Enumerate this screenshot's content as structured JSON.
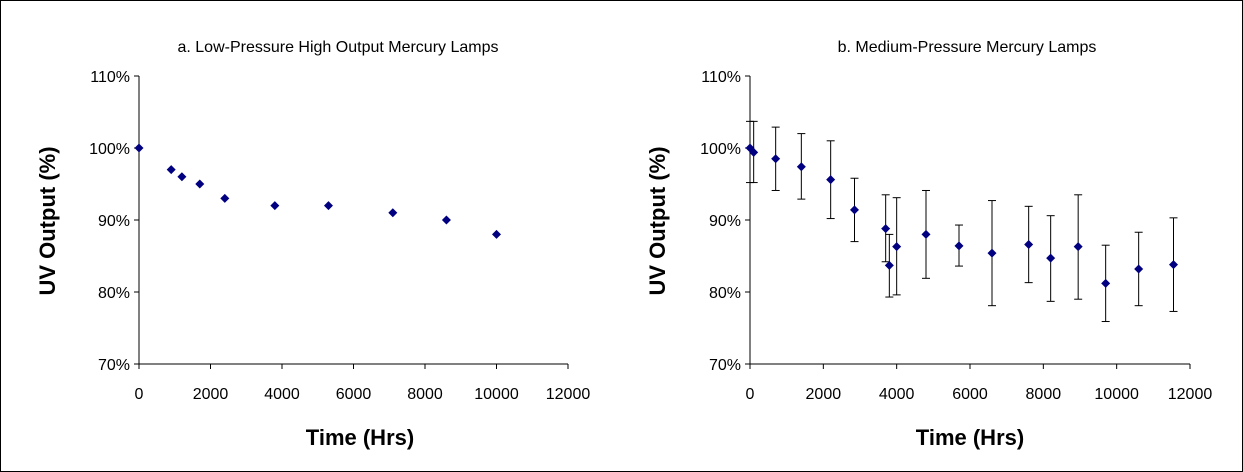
{
  "chart_data": [
    {
      "type": "scatter",
      "title": "a.  Low-Pressure High Output Mercury Lamps",
      "xlabel": "Time (Hrs)",
      "ylabel": "UV Output (%)",
      "xlim": [
        0,
        12000
      ],
      "ylim": [
        70,
        110
      ],
      "x_ticks": [
        "0",
        "2000",
        "4000",
        "6000",
        "8000",
        "10000",
        "12000"
      ],
      "y_ticks": [
        "70%",
        "80%",
        "90%",
        "100%",
        "110%"
      ],
      "grid": false,
      "marker_color": "#000080",
      "series": [
        {
          "x": [
            0,
            900,
            1200,
            1700,
            2400,
            3800,
            5300,
            7100,
            8600,
            10000
          ],
          "y": [
            100,
            97,
            96,
            95,
            93,
            92,
            92,
            91,
            90,
            88
          ]
        }
      ]
    },
    {
      "type": "scatter",
      "title": "b.  Medium-Pressure Mercury Lamps",
      "xlabel": "Time (Hrs)",
      "ylabel": "UV Output (%)",
      "xlim": [
        0,
        12000
      ],
      "ylim": [
        70,
        110
      ],
      "x_ticks": [
        "0",
        "2000",
        "4000",
        "6000",
        "8000",
        "10000",
        "12000"
      ],
      "y_ticks": [
        "70%",
        "80%",
        "90%",
        "100%",
        "110%"
      ],
      "grid": false,
      "marker_color": "#000080",
      "error_bars": true,
      "series": [
        {
          "x": [
            0,
            100,
            700,
            1400,
            2200,
            2850,
            3700,
            3800,
            4000,
            4800,
            5700,
            6600,
            7600,
            8200,
            8950,
            9700,
            10600,
            11550
          ],
          "y": [
            100,
            99.4,
            98.5,
            97.4,
            95.6,
            91.4,
            88.8,
            83.7,
            86.3,
            88.0,
            86.4,
            85.4,
            86.6,
            84.7,
            86.3,
            81.2,
            83.2,
            83.8
          ],
          "err_low": [
            95.2,
            95.2,
            94.1,
            92.9,
            90.2,
            87.0,
            84.2,
            79.3,
            79.6,
            81.9,
            83.6,
            78.1,
            81.3,
            78.7,
            79.0,
            75.9,
            78.1,
            77.3
          ],
          "err_high": [
            103.7,
            103.7,
            102.9,
            102.0,
            101.0,
            95.8,
            93.5,
            88.0,
            93.1,
            94.1,
            89.3,
            92.7,
            91.9,
            90.6,
            93.5,
            86.5,
            88.3,
            90.3
          ]
        }
      ]
    }
  ]
}
